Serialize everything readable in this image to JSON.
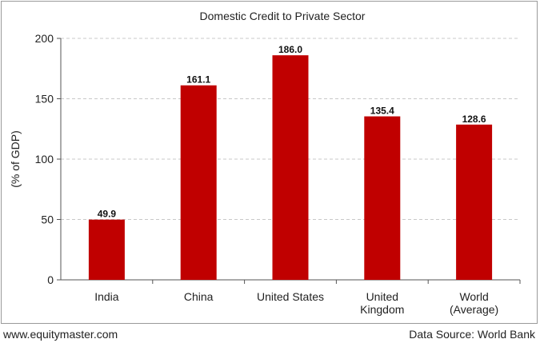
{
  "footer": {
    "website": "www.equitymaster.com",
    "source": "Data Source: World Bank"
  },
  "colors": {
    "bar": "#c00000",
    "grid": "#c8c8c8",
    "axis": "#555555"
  },
  "chart_data": {
    "type": "bar",
    "title": "Domestic Credit to Private Sector",
    "xlabel": "",
    "ylabel": "(% of GDP)",
    "ylim": [
      0,
      200
    ],
    "yticks": [
      0,
      50,
      100,
      150,
      200
    ],
    "grid": true,
    "categories": [
      [
        "India"
      ],
      [
        "China"
      ],
      [
        "United States"
      ],
      [
        "United",
        "Kingdom"
      ],
      [
        "World",
        "(Average)"
      ]
    ],
    "values": [
      49.9,
      161.1,
      186.0,
      135.4,
      128.6
    ],
    "value_labels": [
      "49.9",
      "161.1",
      "186.0",
      "135.4",
      "128.6"
    ]
  }
}
